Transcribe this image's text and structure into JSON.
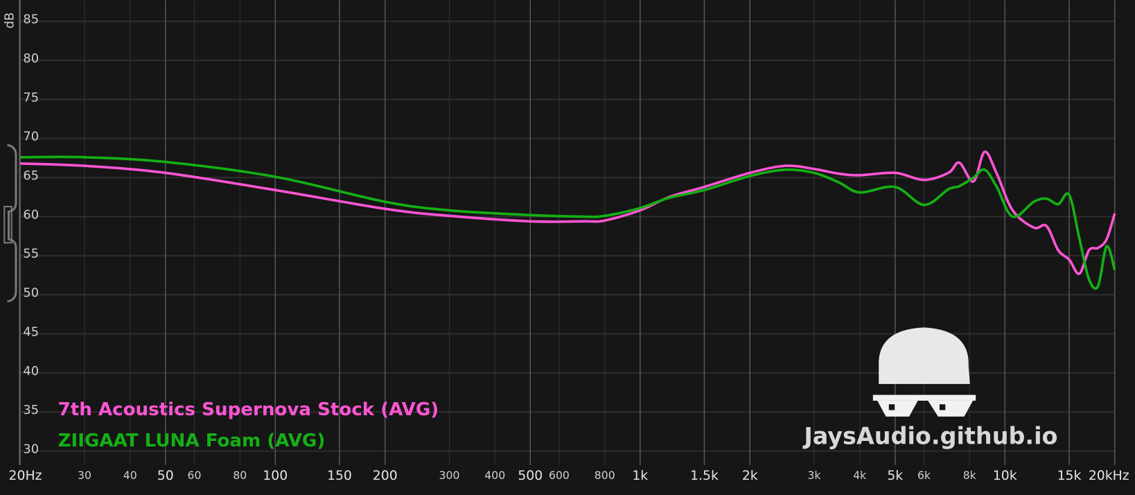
{
  "chart_data": {
    "type": "line",
    "y_label": "dB",
    "watermark": "JaysAudio.github.io",
    "log_x": true,
    "grid": true,
    "xlim": [
      20,
      20000
    ],
    "ylim": [
      28.2,
      87.7
    ],
    "yticks": [
      30,
      35,
      40,
      45,
      50,
      55,
      60,
      65,
      70,
      75,
      80,
      85
    ],
    "xticks": [
      {
        "value": 20,
        "label": "20Hz"
      },
      30,
      40,
      50,
      60,
      80,
      100,
      150,
      200,
      300,
      400,
      500,
      600,
      800,
      {
        "value": 1000,
        "label": "1k"
      },
      {
        "value": 1500,
        "label": "1.5k"
      },
      {
        "value": 2000,
        "label": "2k"
      },
      {
        "value": 3000,
        "label": "3k"
      },
      {
        "value": 4000,
        "label": "4k"
      },
      {
        "value": 5000,
        "label": "5k"
      },
      {
        "value": 6000,
        "label": "6k"
      },
      {
        "value": 8000,
        "label": "8k"
      },
      {
        "value": 10000,
        "label": "10k"
      },
      {
        "value": 15000,
        "label": "15k"
      },
      {
        "value": 20000,
        "label": "20kHz"
      }
    ],
    "x": [
      20,
      30,
      50,
      100,
      200,
      300,
      500,
      700,
      800,
      1000,
      1200,
      1500,
      2000,
      2500,
      3000,
      3500,
      4000,
      5000,
      6000,
      7000,
      7500,
      8200,
      8800,
      9500,
      10500,
      12000,
      13000,
      14000,
      15000,
      16000,
      17000,
      18000,
      19000,
      20000
    ],
    "series": [
      {
        "name": "7th Acoustics Supernova Stock (AVG)",
        "color": "#ff55d4",
        "values": [
          66.8,
          66.5,
          65.6,
          63.4,
          61.0,
          60.1,
          59.4,
          59.4,
          59.5,
          60.8,
          62.5,
          63.8,
          65.6,
          66.5,
          66.1,
          65.5,
          65.3,
          65.6,
          64.7,
          65.6,
          66.9,
          64.5,
          68.3,
          65.5,
          60.8,
          58.6,
          58.8,
          55.7,
          54.5,
          52.7,
          55.7,
          56.0,
          57.1,
          60.4
        ]
      },
      {
        "name": "ZIIGAAT LUNA Foam (AVG)",
        "color": "#14b014",
        "values": [
          67.6,
          67.6,
          67.0,
          65.1,
          61.9,
          60.8,
          60.2,
          60.0,
          60.1,
          61.1,
          62.4,
          63.4,
          65.2,
          66.0,
          65.6,
          64.4,
          63.1,
          63.8,
          61.5,
          63.5,
          63.9,
          65.0,
          66.0,
          63.8,
          60.0,
          61.9,
          62.3,
          61.6,
          62.8,
          57.2,
          52.0,
          51.1,
          56.2,
          53.2
        ]
      }
    ]
  }
}
